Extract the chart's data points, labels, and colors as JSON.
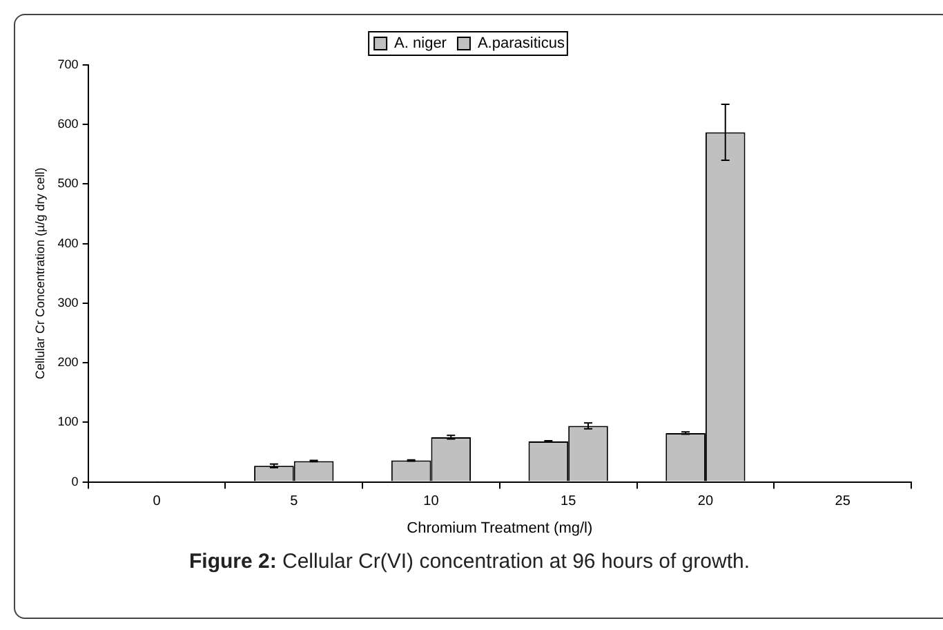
{
  "chart_data": {
    "type": "bar",
    "xlabel": "Chromium Treatment (mg/l)",
    "ylabel": "Cellular Cr Concentration (µ/g dry cell)",
    "categories": [
      "0",
      "5",
      "10",
      "15",
      "20",
      "25"
    ],
    "series": [
      {
        "name": "A. niger",
        "color": "#c0c0c0",
        "values": [
          0,
          27,
          36,
          68,
          82,
          null
        ],
        "errors": [
          null,
          3,
          1,
          1,
          2,
          null
        ]
      },
      {
        "name": "A.parasiticus",
        "color": "#c0c0c0",
        "values": [
          1,
          35,
          75,
          94,
          587,
          null
        ],
        "errors": [
          null,
          1,
          3,
          5,
          47,
          null
        ]
      }
    ],
    "ylim": [
      0,
      700
    ],
    "yticks": [
      0,
      100,
      200,
      300,
      400,
      500,
      600,
      700
    ],
    "grid": false,
    "legend": "top",
    "annotations": [
      "Figure 2: Cellular Cr(VI) concentration at 96 hours of growth."
    ]
  }
}
